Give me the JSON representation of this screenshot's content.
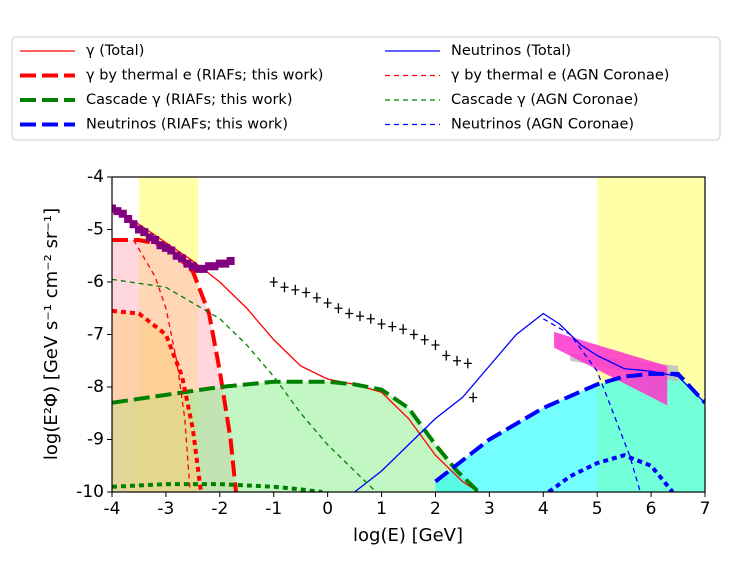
{
  "chart_data": {
    "type": "line",
    "xlabel": "log(E) [GeV]",
    "ylabel": "log(E²Φ) [GeV s⁻¹ cm⁻² sr⁻¹]",
    "xlim": [
      -4,
      7
    ],
    "xticks": [
      -4,
      -3,
      -2,
      -1,
      0,
      1,
      2,
      3,
      4,
      5,
      6,
      7
    ],
    "ylim": [
      -10,
      -4
    ],
    "yticks": [
      -10,
      -9,
      -8,
      -7,
      -6,
      -5,
      -4
    ],
    "spans": [
      {
        "x": [
          -3.5,
          -2.4
        ],
        "color": "#ffff99"
      },
      {
        "x": [
          5,
          7
        ],
        "color": "#ffff99"
      }
    ],
    "series": [
      {
        "name": "γ (Total)",
        "color": "#ff0000",
        "linestyle": "solid",
        "linewidth": 1.3,
        "x": [
          -4,
          -3.5,
          -3,
          -2.5,
          -2,
          -1.5,
          -1,
          -0.5,
          0,
          0.5,
          1,
          1.5,
          2,
          2.5,
          2.8
        ],
        "values": [
          -4.6,
          -4.9,
          -5.25,
          -5.6,
          -6.0,
          -6.5,
          -7.1,
          -7.6,
          -7.85,
          -7.95,
          -8.1,
          -8.6,
          -9.3,
          -9.8,
          -10.0
        ]
      },
      {
        "name": "γ by thermal e (RIAFs; this work)",
        "color": "#ff0000",
        "linestyle": "dashed",
        "linewidth": 4,
        "fill": "#ffb6c1",
        "x": [
          -4,
          -3.5,
          -3,
          -2.5,
          -2.2,
          -2,
          -1.8,
          -1.7
        ],
        "values": [
          -5.2,
          -5.2,
          -5.3,
          -5.8,
          -6.6,
          -7.7,
          -9.0,
          -10.0
        ]
      },
      {
        "name": "Cascade γ (RIAFs; this work)",
        "color": "#008000",
        "linestyle": "dashed",
        "linewidth": 4,
        "fill": "#90ee90",
        "x": [
          -4,
          -3,
          -2,
          -1,
          0,
          0.5,
          1,
          1.5,
          2,
          2.4,
          2.8
        ],
        "values": [
          -8.3,
          -8.15,
          -8.0,
          -7.9,
          -7.9,
          -7.95,
          -8.05,
          -8.4,
          -9.1,
          -9.6,
          -10.0
        ]
      },
      {
        "name": "Neutrinos (RIAFs; this work)",
        "color": "#0000ff",
        "linestyle": "dashed",
        "linewidth": 4,
        "fill": "#00ffff",
        "x": [
          2,
          3,
          4,
          5,
          5.5,
          6,
          6.5,
          7
        ],
        "values": [
          -9.8,
          -9.0,
          -8.4,
          -7.95,
          -7.8,
          -7.75,
          -7.75,
          -8.3
        ]
      },
      {
        "name": "Neutrinos (Total)",
        "color": "#0000ff",
        "linestyle": "solid",
        "linewidth": 1.3,
        "x": [
          0.5,
          1,
          1.5,
          2,
          2.5,
          3,
          3.5,
          4,
          4.3,
          4.7,
          5,
          5.5,
          6,
          6.5,
          7
        ],
        "values": [
          -10.0,
          -9.6,
          -9.1,
          -8.6,
          -8.2,
          -7.6,
          -7.0,
          -6.6,
          -6.8,
          -7.2,
          -7.4,
          -7.65,
          -7.7,
          -7.8,
          -8.3
        ]
      },
      {
        "name": "γ by thermal e (AGN Coronae)",
        "color": "#ff0000",
        "linestyle": "thin-dashed",
        "linewidth": 1.3,
        "x": [
          -3.6,
          -3.2,
          -3,
          -2.8,
          -2.65,
          -2.55
        ],
        "values": [
          -5.2,
          -5.9,
          -6.5,
          -7.5,
          -8.6,
          -10.0
        ]
      },
      {
        "name": "Cascade γ (AGN Coronae)",
        "color": "#008000",
        "linestyle": "thin-dashed",
        "linewidth": 1.3,
        "x": [
          -4,
          -3,
          -2,
          -1.5,
          -1,
          -0.5,
          0,
          0.5,
          0.9
        ],
        "values": [
          -5.95,
          -6.1,
          -6.7,
          -7.2,
          -7.8,
          -8.5,
          -9.1,
          -9.6,
          -10.0
        ]
      },
      {
        "name": "Neutrinos (AGN Coronae)",
        "color": "#0000ff",
        "linestyle": "thin-dashed",
        "linewidth": 1.3,
        "x": [
          4,
          4.5,
          5,
          5.3,
          5.6,
          5.8
        ],
        "values": [
          -6.7,
          -7.0,
          -7.7,
          -8.5,
          -9.3,
          -10.0
        ]
      },
      {
        "color": "#ff0000",
        "linestyle": "dotted",
        "linewidth": 4,
        "fill": "#ffcc80",
        "x": [
          -4,
          -3.5,
          -3,
          -2.7,
          -2.5,
          -2.35
        ],
        "values": [
          -6.55,
          -6.6,
          -7.0,
          -7.8,
          -8.8,
          -10.0
        ]
      },
      {
        "color": "#008000",
        "linestyle": "dotted",
        "linewidth": 4,
        "x": [
          -4,
          -3,
          -2,
          -1,
          -0.5,
          -0.1
        ],
        "values": [
          -9.9,
          -9.85,
          -9.85,
          -9.9,
          -9.95,
          -10.0
        ]
      },
      {
        "color": "#0000ff",
        "linestyle": "dotted",
        "linewidth": 4,
        "x": [
          4.1,
          4.5,
          5,
          5.5,
          6,
          6.4
        ],
        "values": [
          -10.0,
          -9.7,
          -9.45,
          -9.3,
          -9.5,
          -10.0
        ]
      }
    ],
    "polygons": [
      {
        "color": "#bdbdbd",
        "x": [
          4.5,
          6.5,
          6.5,
          4.5
        ],
        "y": [
          -7.35,
          -7.6,
          -7.9,
          -7.5
        ]
      },
      {
        "color": "#ff33cc",
        "x": [
          4.2,
          6.3,
          6.3,
          4.2
        ],
        "y": [
          -6.95,
          -7.6,
          -8.35,
          -7.25
        ]
      }
    ],
    "points": [
      {
        "marker": "square",
        "color": "#800080",
        "x": [
          -4.0,
          -3.9,
          -3.8,
          -3.7,
          -3.6,
          -3.5,
          -3.4,
          -3.3,
          -3.2,
          -3.1,
          -3.0,
          -2.9,
          -2.8,
          -2.7,
          -2.6,
          -2.5,
          -2.4,
          -2.3,
          -2.2,
          -2.1,
          -2.0,
          -1.9,
          -1.8
        ],
        "values": [
          -4.6,
          -4.65,
          -4.7,
          -4.8,
          -4.9,
          -5.0,
          -5.05,
          -5.15,
          -5.2,
          -5.3,
          -5.35,
          -5.4,
          -5.5,
          -5.55,
          -5.65,
          -5.7,
          -5.75,
          -5.75,
          -5.7,
          -5.7,
          -5.65,
          -5.65,
          -5.6
        ]
      },
      {
        "marker": "cross",
        "color": "#000000",
        "x": [
          -1.0,
          -0.8,
          -0.6,
          -0.4,
          -0.2,
          0.0,
          0.2,
          0.4,
          0.6,
          0.8,
          1.0,
          1.2,
          1.4,
          1.6,
          1.8,
          2.0,
          2.2,
          2.4,
          2.6,
          2.7
        ],
        "values": [
          -6.0,
          -6.1,
          -6.15,
          -6.2,
          -6.3,
          -6.4,
          -6.5,
          -6.6,
          -6.65,
          -6.7,
          -6.8,
          -6.85,
          -6.9,
          -7.0,
          -7.1,
          -7.2,
          -7.4,
          -7.5,
          -7.55,
          -8.2
        ]
      }
    ]
  }
}
